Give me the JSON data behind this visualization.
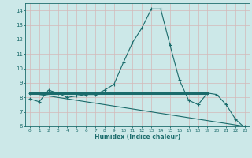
{
  "xlabel": "Humidex (Indice chaleur)",
  "ylabel": "",
  "bg_color": "#cce8e8",
  "grid_color": "#b8d8d8",
  "line_color": "#1a6b6b",
  "xlim": [
    -0.5,
    23.5
  ],
  "ylim": [
    6,
    14.5
  ],
  "yticks": [
    6,
    7,
    8,
    9,
    10,
    11,
    12,
    13,
    14
  ],
  "xticks": [
    0,
    1,
    2,
    3,
    4,
    5,
    6,
    7,
    8,
    9,
    10,
    11,
    12,
    13,
    14,
    15,
    16,
    17,
    18,
    19,
    20,
    21,
    22,
    23
  ],
  "line1_x": [
    0,
    1,
    2,
    3,
    4,
    5,
    6,
    7,
    8,
    9,
    10,
    11,
    12,
    13,
    14,
    15,
    16,
    17,
    18,
    19,
    20,
    21,
    22,
    23
  ],
  "line1_y": [
    7.9,
    7.7,
    8.5,
    8.3,
    8.0,
    8.1,
    8.2,
    8.2,
    8.5,
    8.9,
    10.4,
    11.8,
    12.8,
    14.1,
    14.1,
    11.6,
    9.2,
    7.8,
    7.5,
    8.3,
    8.2,
    7.5,
    6.5,
    5.9
  ],
  "line2_x": [
    0,
    19
  ],
  "line2_y": [
    8.3,
    8.3
  ],
  "line3_x": [
    0,
    23
  ],
  "line3_y": [
    8.3,
    6.0
  ],
  "marker_color": "#1a6b6b"
}
